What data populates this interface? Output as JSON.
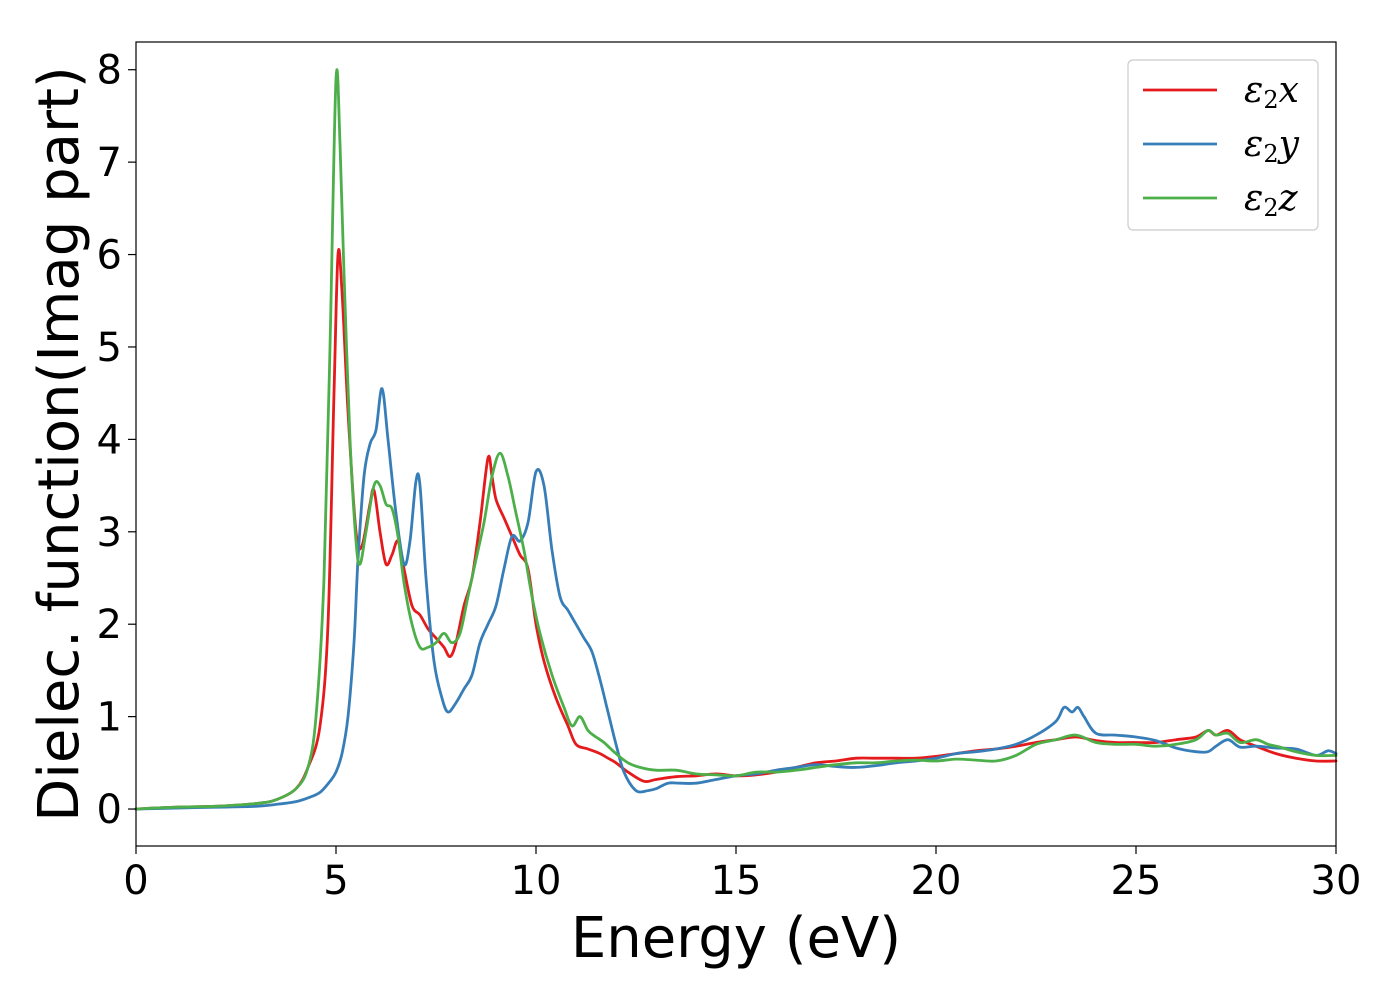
{
  "chart_data": {
    "type": "line",
    "title": "",
    "xlabel": "Energy (eV)",
    "ylabel": "Dielec. function(Imag part)",
    "xlim": [
      0,
      30
    ],
    "ylim": [
      -0.4,
      8.3
    ],
    "xticks": [
      "0",
      "5",
      "10",
      "15",
      "20",
      "25",
      "30"
    ],
    "yticks": [
      "0",
      "1",
      "2",
      "3",
      "4",
      "5",
      "6",
      "7",
      "8"
    ],
    "grid": false,
    "legend_position": "top-right",
    "series": [
      {
        "name": "ε2x",
        "legend_base": "ε",
        "legend_sub": "2",
        "legend_suffix": "x",
        "color": "#e41a1c",
        "x": [
          0,
          1,
          2,
          3,
          3.5,
          4,
          4.3,
          4.6,
          4.8,
          4.95,
          5.05,
          5.15,
          5.3,
          5.5,
          5.65,
          5.85,
          5.95,
          6.1,
          6.25,
          6.4,
          6.55,
          6.7,
          6.9,
          7.1,
          7.3,
          7.5,
          7.7,
          7.85,
          8.0,
          8.2,
          8.4,
          8.6,
          8.8,
          8.9,
          9.0,
          9.2,
          9.4,
          9.6,
          9.8,
          10.0,
          10.2,
          10.5,
          10.8,
          11.0,
          11.3,
          11.6,
          11.8,
          12.0,
          12.3,
          12.7,
          13.0,
          13.5,
          14.0,
          14.5,
          15.0,
          15.5,
          16.0,
          16.5,
          17.0,
          17.5,
          18.0,
          18.5,
          19.0,
          19.5,
          20.0,
          20.5,
          21.0,
          21.5,
          22.0,
          22.5,
          23.0,
          23.5,
          24.0,
          24.5,
          25.0,
          25.5,
          26.0,
          26.5,
          26.8,
          27.0,
          27.3,
          27.6,
          28.0,
          28.5,
          29.0,
          29.5,
          30.0
        ],
        "y": [
          0.0,
          0.02,
          0.03,
          0.06,
          0.1,
          0.22,
          0.45,
          0.9,
          2.0,
          4.5,
          6.0,
          5.6,
          4.3,
          3.0,
          2.85,
          3.3,
          3.45,
          3.0,
          2.65,
          2.75,
          2.9,
          2.6,
          2.2,
          2.1,
          1.95,
          1.85,
          1.75,
          1.65,
          1.8,
          2.2,
          2.5,
          3.1,
          3.8,
          3.6,
          3.35,
          3.15,
          2.95,
          2.75,
          2.6,
          2.0,
          1.6,
          1.2,
          0.9,
          0.7,
          0.65,
          0.6,
          0.55,
          0.5,
          0.4,
          0.3,
          0.32,
          0.35,
          0.36,
          0.38,
          0.36,
          0.37,
          0.4,
          0.45,
          0.5,
          0.52,
          0.55,
          0.55,
          0.55,
          0.55,
          0.57,
          0.6,
          0.63,
          0.65,
          0.68,
          0.72,
          0.75,
          0.78,
          0.74,
          0.72,
          0.72,
          0.72,
          0.75,
          0.78,
          0.85,
          0.8,
          0.85,
          0.75,
          0.68,
          0.6,
          0.55,
          0.52,
          0.52
        ]
      },
      {
        "name": "ε2y",
        "legend_base": "ε",
        "legend_sub": "2",
        "legend_suffix": "y",
        "color": "#377eb8",
        "x": [
          0,
          1,
          2,
          3,
          3.5,
          4,
          4.3,
          4.6,
          4.85,
          5.0,
          5.15,
          5.3,
          5.45,
          5.55,
          5.7,
          5.85,
          6.0,
          6.15,
          6.3,
          6.5,
          6.7,
          6.85,
          7.0,
          7.1,
          7.25,
          7.45,
          7.65,
          7.8,
          8.0,
          8.2,
          8.4,
          8.6,
          8.8,
          9.0,
          9.2,
          9.4,
          9.6,
          9.8,
          10.0,
          10.2,
          10.4,
          10.6,
          10.8,
          11.0,
          11.2,
          11.4,
          11.6,
          11.8,
          12.0,
          12.2,
          12.5,
          12.8,
          13.0,
          13.3,
          13.6,
          14.0,
          14.5,
          15.0,
          15.5,
          16.0,
          16.5,
          17.0,
          17.5,
          18.0,
          18.5,
          19.0,
          19.5,
          20.0,
          20.5,
          21.0,
          21.5,
          22.0,
          22.5,
          23.0,
          23.2,
          23.4,
          23.55,
          23.7,
          24.0,
          24.5,
          25.0,
          25.5,
          26.0,
          26.5,
          26.8,
          27.0,
          27.3,
          27.6,
          28.0,
          28.5,
          29.0,
          29.5,
          29.8,
          30.0
        ],
        "y": [
          0.0,
          0.01,
          0.02,
          0.03,
          0.05,
          0.08,
          0.12,
          0.18,
          0.3,
          0.4,
          0.6,
          1.0,
          1.8,
          2.7,
          3.6,
          3.95,
          4.1,
          4.55,
          4.0,
          3.2,
          2.65,
          2.9,
          3.55,
          3.5,
          2.5,
          1.6,
          1.2,
          1.05,
          1.15,
          1.3,
          1.45,
          1.8,
          2.0,
          2.2,
          2.6,
          2.95,
          2.9,
          3.1,
          3.65,
          3.5,
          2.8,
          2.3,
          2.15,
          2.0,
          1.85,
          1.7,
          1.4,
          1.05,
          0.7,
          0.4,
          0.2,
          0.2,
          0.22,
          0.28,
          0.28,
          0.28,
          0.32,
          0.36,
          0.38,
          0.42,
          0.45,
          0.48,
          0.46,
          0.45,
          0.47,
          0.5,
          0.52,
          0.55,
          0.6,
          0.62,
          0.65,
          0.7,
          0.8,
          0.95,
          1.1,
          1.05,
          1.1,
          1.0,
          0.82,
          0.8,
          0.78,
          0.74,
          0.66,
          0.62,
          0.62,
          0.68,
          0.75,
          0.67,
          0.68,
          0.66,
          0.65,
          0.58,
          0.63,
          0.6
        ]
      },
      {
        "name": "ε2z",
        "legend_base": "ε",
        "legend_sub": "2",
        "legend_suffix": "z",
        "color": "#4daf4a",
        "x": [
          0,
          1,
          2,
          3,
          3.5,
          4,
          4.3,
          4.5,
          4.7,
          4.85,
          5.0,
          5.1,
          5.2,
          5.35,
          5.5,
          5.6,
          5.75,
          5.95,
          6.1,
          6.25,
          6.4,
          6.55,
          6.7,
          6.9,
          7.1,
          7.3,
          7.5,
          7.7,
          7.9,
          8.1,
          8.3,
          8.5,
          8.7,
          8.9,
          9.1,
          9.3,
          9.5,
          9.7,
          9.9,
          10.1,
          10.4,
          10.7,
          10.9,
          11.1,
          11.3,
          11.5,
          11.7,
          12.0,
          12.3,
          12.6,
          13.0,
          13.5,
          14.0,
          14.5,
          15.0,
          15.5,
          16.0,
          16.5,
          17.0,
          17.5,
          18.0,
          18.5,
          19.0,
          19.5,
          20.0,
          20.5,
          21.0,
          21.5,
          22.0,
          22.5,
          23.0,
          23.5,
          24.0,
          24.5,
          25.0,
          25.5,
          26.0,
          26.5,
          26.8,
          27.0,
          27.3,
          27.6,
          28.0,
          28.3,
          28.6,
          29.0,
          29.5,
          30.0
        ],
        "y": [
          0.0,
          0.02,
          0.03,
          0.06,
          0.1,
          0.22,
          0.45,
          1.0,
          2.5,
          5.0,
          7.9,
          7.2,
          5.8,
          4.0,
          2.9,
          2.65,
          3.0,
          3.5,
          3.5,
          3.3,
          3.25,
          2.95,
          2.45,
          2.0,
          1.75,
          1.75,
          1.8,
          1.9,
          1.8,
          1.9,
          2.3,
          2.7,
          3.1,
          3.6,
          3.85,
          3.6,
          3.2,
          2.8,
          2.3,
          1.9,
          1.45,
          1.1,
          0.9,
          1.0,
          0.85,
          0.78,
          0.72,
          0.6,
          0.5,
          0.45,
          0.42,
          0.42,
          0.38,
          0.37,
          0.36,
          0.4,
          0.4,
          0.42,
          0.45,
          0.48,
          0.5,
          0.5,
          0.52,
          0.53,
          0.52,
          0.54,
          0.53,
          0.52,
          0.58,
          0.7,
          0.75,
          0.8,
          0.72,
          0.7,
          0.7,
          0.68,
          0.7,
          0.75,
          0.85,
          0.8,
          0.82,
          0.72,
          0.75,
          0.7,
          0.67,
          0.62,
          0.58,
          0.58
        ]
      }
    ]
  }
}
